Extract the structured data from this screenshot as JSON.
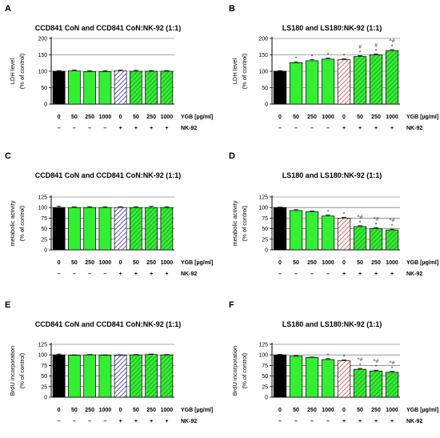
{
  "figure": {
    "colors": {
      "black": "#000000",
      "green": "#33ee33",
      "hatch_blue": "#5a5ab8",
      "hatch_red": "#e07070",
      "hatch_green": "#2a8a2a"
    },
    "row_labels": {
      "ygb": "YGB [µg/ml]",
      "nk": "NK-92"
    },
    "x_ygb": [
      "0",
      "50",
      "250",
      "1000",
      "0",
      "50",
      "250",
      "1000"
    ],
    "x_nk": [
      "–",
      "–",
      "–",
      "–",
      "+",
      "+",
      "+",
      "+"
    ]
  },
  "chart_data": [
    {
      "panel": "A",
      "type": "bar",
      "title": "CCD841 CoN and CCD841 CoN:NK-92 (1:1)",
      "ylabel": "LDH level",
      "ylabel2": "(% of control)",
      "ylim": [
        0,
        200
      ],
      "yticks": [
        0,
        50,
        100,
        150,
        200
      ],
      "grid": "horizontal",
      "categories": [
        "0",
        "50",
        "250",
        "1000",
        "0",
        "50",
        "250",
        "1000"
      ],
      "values": [
        100,
        101,
        99,
        99,
        101,
        100,
        100,
        100
      ],
      "errors": [
        2,
        3,
        3,
        3,
        3,
        3,
        2,
        2
      ],
      "styles": [
        "black",
        "green",
        "green",
        "green",
        "hatch_blue",
        "hatch_green",
        "hatch_green",
        "hatch_green"
      ],
      "annotations": [
        "",
        "",
        "",
        "",
        "",
        "",
        "",
        ""
      ]
    },
    {
      "panel": "B",
      "type": "bar",
      "title": "LS180 and LS180:NK-92 (1:1)",
      "ylabel": "LDH level",
      "ylabel2": "(% of control)",
      "ylim": [
        0,
        200
      ],
      "yticks": [
        0,
        50,
        100,
        150,
        200
      ],
      "grid": "horizontal",
      "categories": [
        "0",
        "50",
        "250",
        "1000",
        "0",
        "50",
        "250",
        "1000"
      ],
      "values": [
        100,
        126,
        132,
        137,
        135,
        145,
        150,
        163
      ],
      "errors": [
        2,
        3,
        3,
        3,
        3,
        3,
        3,
        3
      ],
      "styles": [
        "black",
        "green",
        "green",
        "green",
        "hatch_red",
        "hatch_green",
        "hatch_green",
        "hatch_green"
      ],
      "annotations": [
        "",
        "*",
        "*",
        "*",
        "*",
        "#\n*",
        "#\n*",
        "^#\n*"
      ]
    },
    {
      "panel": "C",
      "type": "bar",
      "title": "CCD841 CoN and CCD841 CoN:NK-92 (1:1)",
      "ylabel": "metabolic activity",
      "ylabel2": "(% of control)",
      "ylim": [
        0,
        125
      ],
      "yticks": [
        0,
        25,
        50,
        75,
        100,
        125
      ],
      "grid": "horizontal",
      "categories": [
        "0",
        "50",
        "250",
        "1000",
        "0",
        "50",
        "250",
        "1000"
      ],
      "values": [
        100,
        100,
        100,
        100,
        100,
        100,
        100,
        100
      ],
      "errors": [
        3,
        2,
        2,
        2,
        2,
        2,
        3,
        2
      ],
      "styles": [
        "black",
        "green",
        "green",
        "green",
        "hatch_blue",
        "hatch_green",
        "hatch_green",
        "hatch_green"
      ],
      "annotations": [
        "",
        "",
        "",
        "",
        "",
        "",
        "",
        ""
      ]
    },
    {
      "panel": "D",
      "type": "bar",
      "title": "LS180 and LS180:NK-92 (1:1)",
      "ylabel": "metabolic activity",
      "ylabel2": "(% of control)",
      "ylim": [
        0,
        125
      ],
      "yticks": [
        0,
        25,
        50,
        75,
        100,
        125
      ],
      "grid": "horizontal",
      "categories": [
        "0",
        "50",
        "250",
        "1000",
        "0",
        "50",
        "250",
        "1000"
      ],
      "values": [
        100,
        93,
        90,
        80,
        75,
        55,
        50,
        47
      ],
      "errors": [
        1,
        2,
        2,
        2,
        2,
        2,
        2,
        2
      ],
      "styles": [
        "black",
        "green",
        "green",
        "green",
        "hatch_red",
        "hatch_green",
        "hatch_green",
        "hatch_green"
      ],
      "annotations": [
        "",
        "",
        "",
        "*",
        "*",
        "^#\n*",
        "^#\n*",
        "^#\n*"
      ]
    },
    {
      "panel": "E",
      "type": "bar",
      "title": "CCD841 CoN and CCD841 CoN:NK-92 (1:1)",
      "ylabel": "BrdU incorporation",
      "ylabel2": "(% of control)",
      "ylim": [
        0,
        125
      ],
      "yticks": [
        0,
        25,
        50,
        75,
        100,
        125
      ],
      "grid": "horizontal",
      "categories": [
        "0",
        "50",
        "250",
        "1000",
        "0",
        "50",
        "250",
        "1000"
      ],
      "values": [
        100,
        99,
        100,
        99,
        99,
        100,
        101,
        100
      ],
      "errors": [
        2,
        1,
        1,
        1,
        1,
        1,
        1,
        1
      ],
      "styles": [
        "black",
        "green",
        "green",
        "green",
        "hatch_blue",
        "hatch_green",
        "hatch_green",
        "hatch_green"
      ],
      "annotations": [
        "",
        "",
        "",
        "",
        "",
        "",
        "",
        ""
      ]
    },
    {
      "panel": "F",
      "type": "bar",
      "title": "LS180 and LS180:NK-92 (1:1)",
      "ylabel": "BrdU incorporation",
      "ylabel2": "(% of control)",
      "ylim": [
        0,
        125
      ],
      "yticks": [
        0,
        25,
        50,
        75,
        100,
        125
      ],
      "grid": "horizontal",
      "categories": [
        "0",
        "50",
        "250",
        "1000",
        "0",
        "50",
        "250",
        "1000"
      ],
      "values": [
        100,
        97,
        94,
        89,
        86,
        66,
        62,
        59
      ],
      "errors": [
        1,
        1,
        1,
        2,
        2,
        2,
        2,
        2
      ],
      "styles": [
        "black",
        "green",
        "green",
        "green",
        "hatch_red",
        "hatch_green",
        "hatch_green",
        "hatch_green"
      ],
      "annotations": [
        "",
        "",
        "",
        "*",
        "*",
        "^#\n*",
        "^#\n*",
        "^#\n*"
      ]
    }
  ]
}
